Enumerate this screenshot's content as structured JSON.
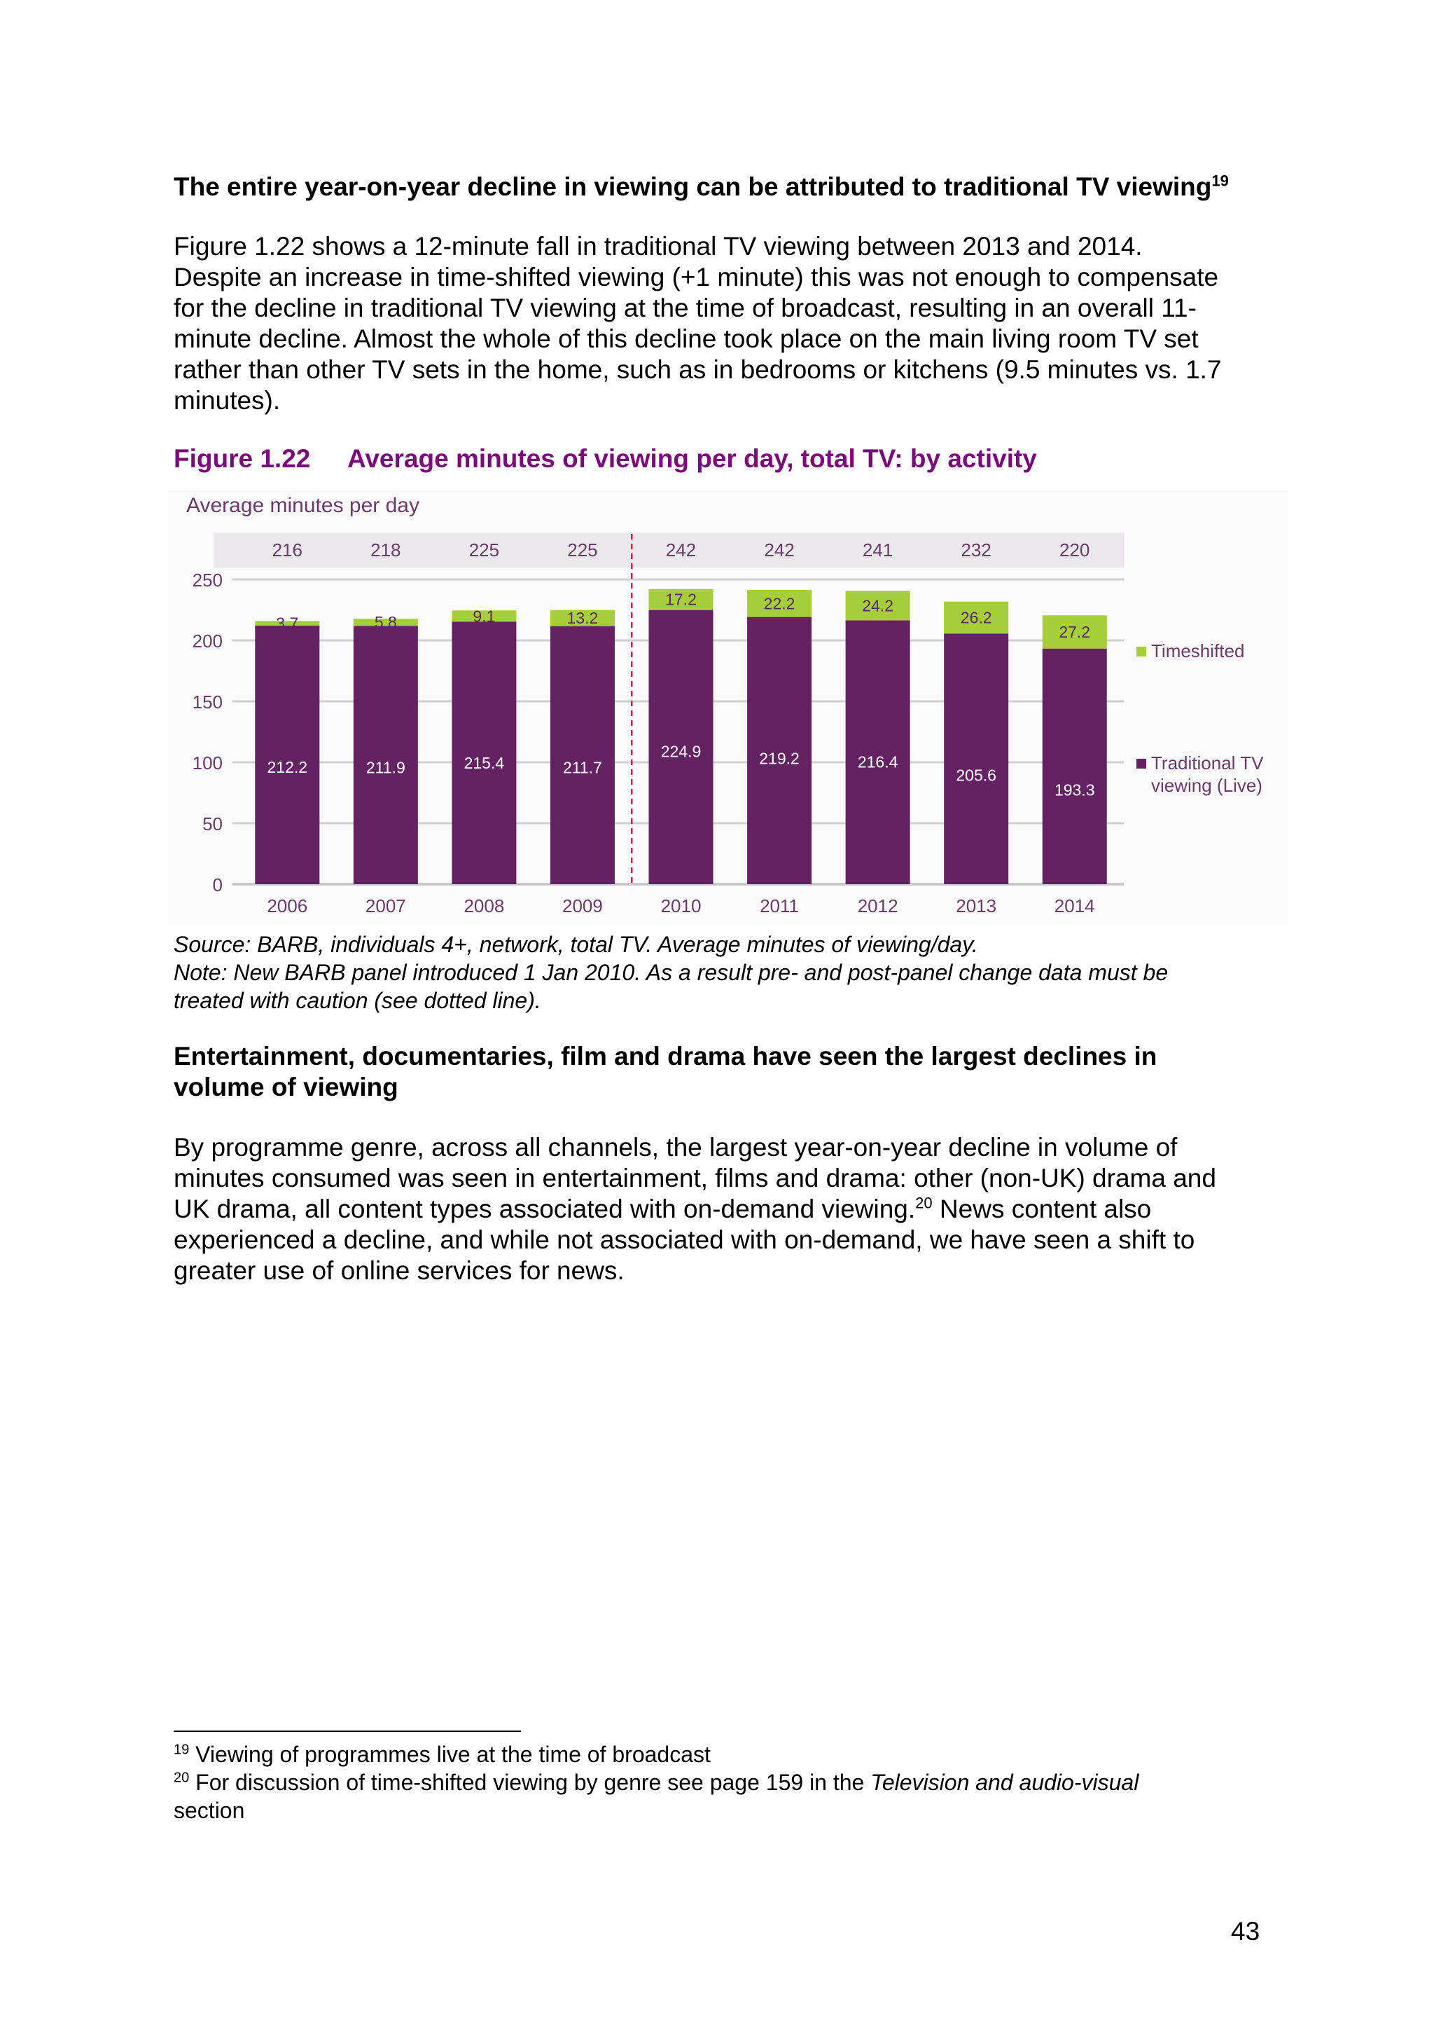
{
  "section1": {
    "heading": "The entire year-on-year decline in viewing can be attributed to traditional TV viewing",
    "heading_ref": "19",
    "paragraph_lines": [
      "Figure 1.22 shows a 12-minute fall in traditional TV viewing between 2013 and 2014.",
      "Despite an increase in time-shifted viewing (+1 minute) this was not enough to compensate",
      "for the decline in traditional TV viewing at the time of broadcast, resulting in an overall 11-",
      "minute decline. Almost the whole of this decline took place on the main living room TV set",
      "rather than other TV sets in the home, such as in bedrooms or kitchens (9.5 minutes vs. 1.7",
      "minutes)."
    ]
  },
  "figure": {
    "number": "Figure 1.22",
    "title": "Average minutes of viewing per day, total TV: by activity",
    "source": "Source: BARB, individuals 4+, network, total TV. Average minutes of viewing/day.",
    "note_lines": [
      "Note: New BARB panel introduced 1 Jan 2010. As a result pre- and post-panel change data must be",
      "treated with caution (see dotted line)."
    ]
  },
  "chart_data": {
    "type": "bar",
    "stacked": true,
    "ylabel": "Average minutes per day",
    "ylim": [
      0,
      250
    ],
    "yticks": [
      0,
      50,
      100,
      150,
      200,
      250
    ],
    "categories": [
      "2006",
      "2007",
      "2008",
      "2009",
      "2010",
      "2011",
      "2012",
      "2013",
      "2014"
    ],
    "totals": [
      "216",
      "218",
      "225",
      "225",
      "242",
      "242",
      "241",
      "232",
      "220"
    ],
    "series": [
      {
        "name": "Traditional TV viewing (Live)",
        "legend_lines": [
          "Traditional TV",
          "viewing (Live)"
        ],
        "color": "#642263",
        "values": [
          212.2,
          211.9,
          215.4,
          211.7,
          224.9,
          219.2,
          216.4,
          205.6,
          193.3
        ]
      },
      {
        "name": "Timeshifted",
        "legend_lines": [
          "Timeshifted"
        ],
        "color": "#a6ce39",
        "values": [
          3.7,
          5.8,
          9.1,
          13.2,
          17.2,
          22.2,
          24.2,
          26.2,
          27.2
        ]
      }
    ],
    "divider": "dashed line between 2009 and 2010",
    "grid": true,
    "legend_position": "right"
  },
  "section2": {
    "heading_lines": [
      "Entertainment, documentaries, film and drama have seen the largest declines in",
      "volume of viewing"
    ],
    "paragraph_lines": [
      "By programme genre, across all channels, the largest year-on-year decline in volume of",
      "minutes consumed was seen in entertainment, films and drama: other (non-UK) drama and"
    ],
    "line3_before": "UK drama, all content types associated with on-demand viewing.",
    "line3_ref": "20",
    "line3_after": " News content also",
    "paragraph_tail_lines": [
      "experienced a decline, and while not associated with on-demand, we have seen a shift to",
      "greater use of online services for news."
    ]
  },
  "footnotes": {
    "fn19_ref": "19",
    "fn19_text": " Viewing of programmes live at the time of broadcast",
    "fn20_ref": "20",
    "fn20_text_before": " For discussion of time-shifted viewing by genre see page 159 in the ",
    "fn20_text_italic": "Television and audio-visual",
    "fn20_text_line2": "section"
  },
  "page_number": "43"
}
